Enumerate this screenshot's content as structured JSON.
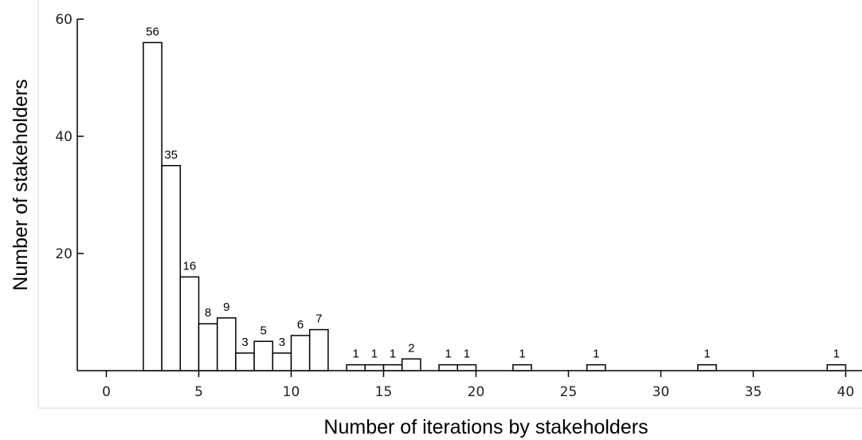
{
  "chart_data": {
    "type": "bar",
    "title": "",
    "xlabel": "Number of iterations by stakeholders",
    "ylabel": "Number of stakeholders",
    "xlim": [
      -1.5,
      40.5
    ],
    "ylim": [
      0,
      60
    ],
    "x_ticks": [
      "0",
      "5",
      "10",
      "15",
      "20",
      "25",
      "30",
      "35",
      "40"
    ],
    "y_ticks": [
      "20",
      "40",
      "60"
    ],
    "bin_width": 1,
    "bars": [
      {
        "x_start": 2,
        "value": 56,
        "label": "56"
      },
      {
        "x_start": 3,
        "value": 35,
        "label": "35"
      },
      {
        "x_start": 4,
        "value": 16,
        "label": "16"
      },
      {
        "x_start": 5,
        "value": 8,
        "label": "8"
      },
      {
        "x_start": 6,
        "value": 9,
        "label": "9"
      },
      {
        "x_start": 7,
        "value": 3,
        "label": "3"
      },
      {
        "x_start": 8,
        "value": 5,
        "label": "5"
      },
      {
        "x_start": 9,
        "value": 3,
        "label": "3"
      },
      {
        "x_start": 10,
        "value": 6,
        "label": "6"
      },
      {
        "x_start": 11,
        "value": 7,
        "label": "7"
      },
      {
        "x_start": 13,
        "value": 1,
        "label": "1"
      },
      {
        "x_start": 14,
        "value": 1,
        "label": "1"
      },
      {
        "x_start": 15,
        "value": 1,
        "label": "1"
      },
      {
        "x_start": 16,
        "value": 2,
        "label": "2"
      },
      {
        "x_start": 18,
        "value": 1,
        "label": "1"
      },
      {
        "x_start": 19,
        "value": 1,
        "label": "1"
      },
      {
        "x_start": 22,
        "value": 1,
        "label": "1"
      },
      {
        "x_start": 26,
        "value": 1,
        "label": "1"
      },
      {
        "x_start": 32,
        "value": 1,
        "label": "1"
      },
      {
        "x_start": 39,
        "value": 1,
        "label": "1"
      }
    ],
    "grid": false,
    "colors": {
      "bar_fill": "#ffffff",
      "bar_stroke": "#000000"
    }
  }
}
